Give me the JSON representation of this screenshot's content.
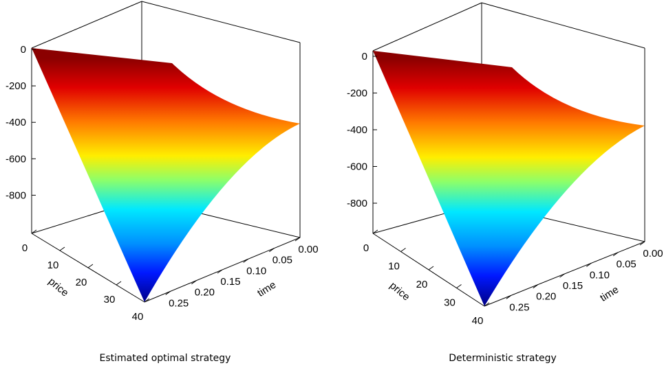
{
  "chart_data": [
    {
      "type": "surface",
      "caption": "Estimated optimal strategy",
      "x_axis": {
        "label": "price",
        "ticks": [
          "0",
          "10",
          "20",
          "30",
          "40"
        ],
        "range": [
          0,
          40
        ]
      },
      "y_axis": {
        "label": "time",
        "ticks": [
          "0.00",
          "0.05",
          "0.10",
          "0.15",
          "0.20",
          "0.25"
        ],
        "range": [
          0,
          0.3
        ]
      },
      "z_axis": {
        "ticks": [
          "0",
          "-200",
          "-400",
          "-600",
          "-800"
        ],
        "range": [
          -1000,
          0
        ]
      },
      "surface": {
        "corner_values": [
          {
            "price": 0,
            "time": 0,
            "z": 0
          },
          {
            "price": 0,
            "time": 0.3,
            "z": 0
          },
          {
            "price": 40,
            "time": 0,
            "z": -400
          },
          {
            "price": 40,
            "time": 0.3,
            "z": -1000
          }
        ],
        "colormap": "jet"
      }
    },
    {
      "type": "surface",
      "caption": "Deterministic strategy",
      "x_axis": {
        "label": "price",
        "ticks": [
          "0",
          "10",
          "20",
          "30",
          "40"
        ],
        "range": [
          0,
          40
        ]
      },
      "y_axis": {
        "label": "time",
        "ticks": [
          "0.00",
          "0.05",
          "0.10",
          "0.15",
          "0.20",
          "0.25"
        ],
        "range": [
          0,
          0.3
        ]
      },
      "z_axis": {
        "ticks": [
          "0",
          "-200",
          "-400",
          "-600",
          "-800"
        ],
        "range": [
          -1000,
          0
        ]
      },
      "surface": {
        "corner_values": [
          {
            "price": 0,
            "time": 0,
            "z": 0
          },
          {
            "price": 0,
            "time": 0.3,
            "z": 0
          },
          {
            "price": 40,
            "time": 0,
            "z": -400
          },
          {
            "price": 40,
            "time": 0.3,
            "z": -1000
          }
        ],
        "colormap": "jet"
      }
    }
  ]
}
